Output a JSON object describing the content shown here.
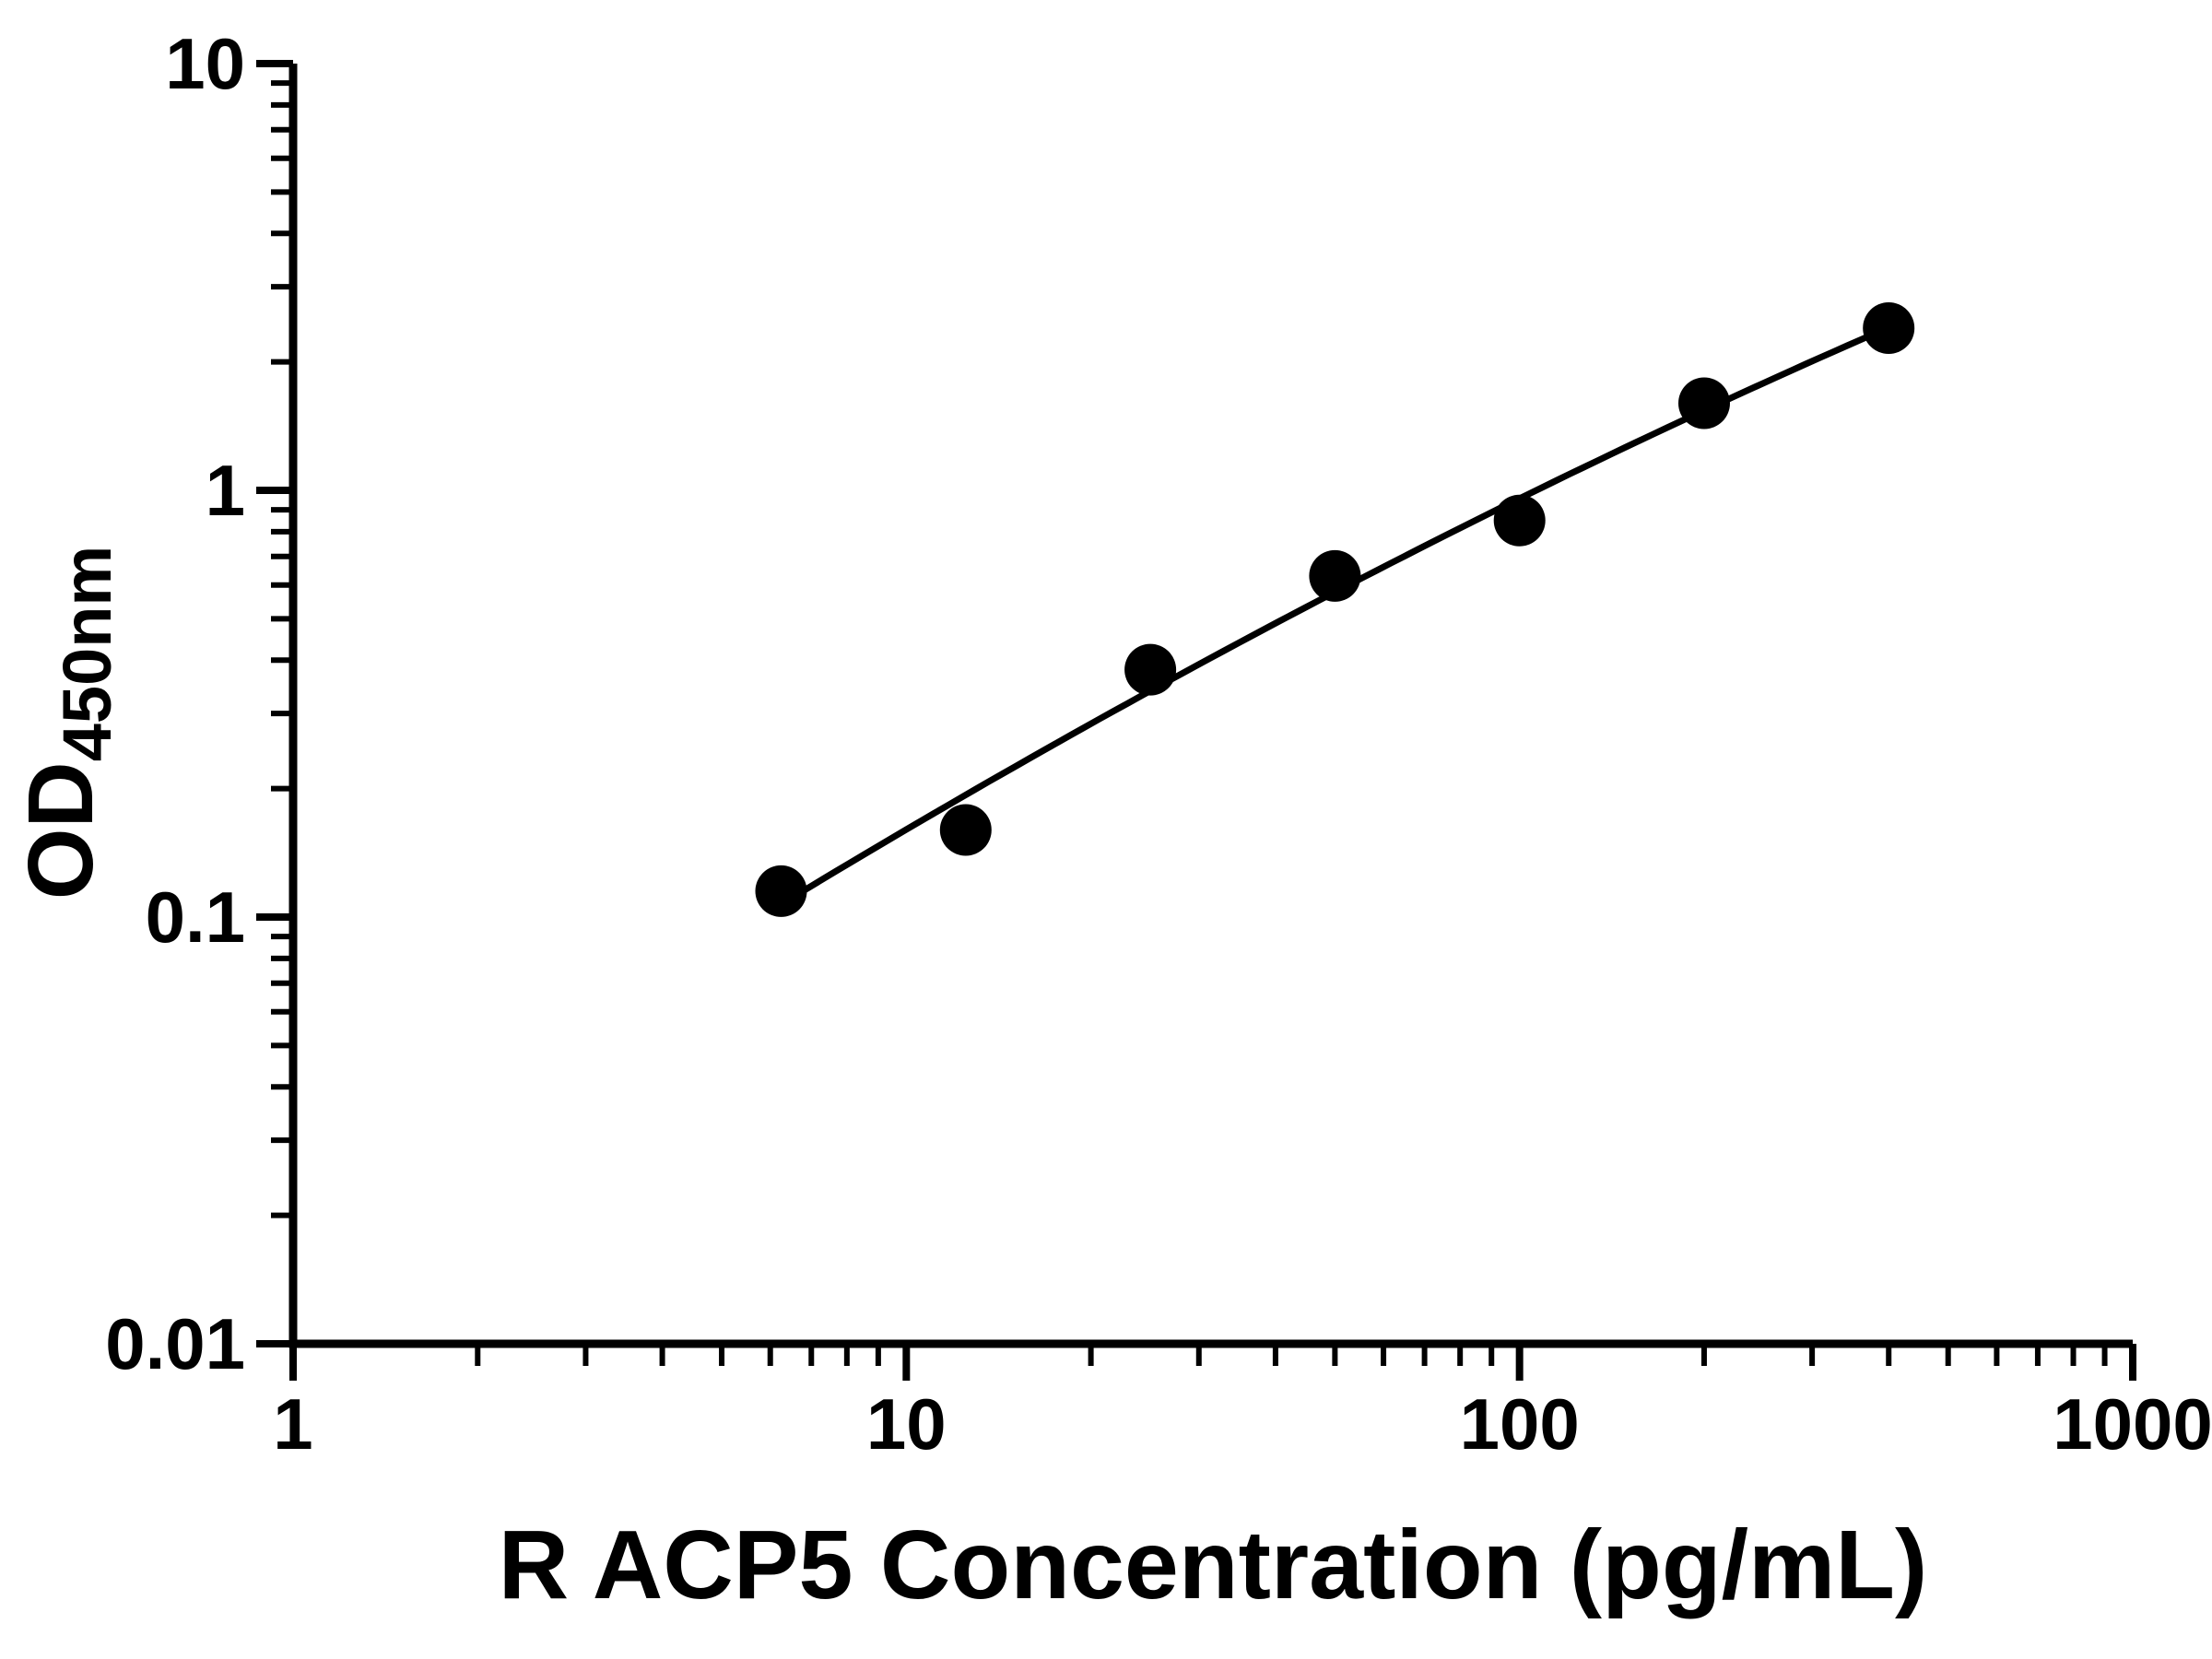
{
  "chart_data": {
    "type": "scatter",
    "title": "",
    "xlabel": "R ACP5 Concentration (pg/mL)",
    "ylabel": "OD450nm",
    "ylabel_main": "OD",
    "ylabel_sub": "450nm",
    "x_scale": "log10",
    "y_scale": "log10",
    "xlim": [
      1,
      1000
    ],
    "ylim": [
      0.01,
      10
    ],
    "x_ticks": [
      "1",
      "10",
      "100",
      "1000"
    ],
    "y_ticks": [
      "0.01",
      "0.1",
      "1",
      "10"
    ],
    "x": [
      6.25,
      12.5,
      25,
      50,
      100,
      200,
      400
    ],
    "y": [
      0.115,
      0.16,
      0.38,
      0.63,
      0.85,
      1.6,
      2.4
    ],
    "grid": false,
    "legend": "none",
    "marker": "circle",
    "marker_color": "#000000",
    "line_color": "#000000",
    "background": "#ffffff"
  }
}
